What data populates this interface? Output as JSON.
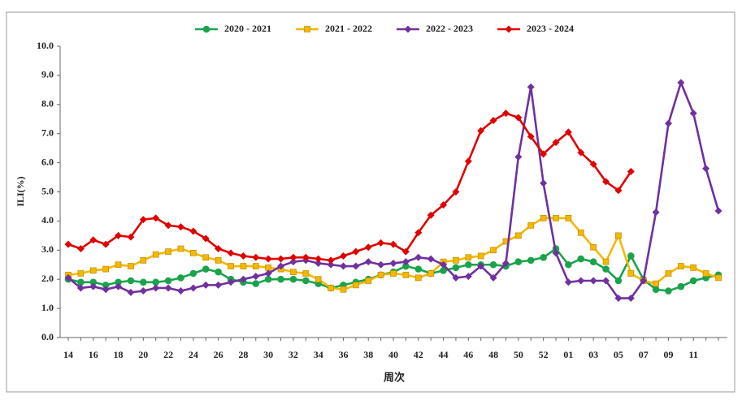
{
  "chart_data": {
    "type": "line",
    "ylabel": "ILI(%)",
    "xlabel": "周次",
    "categories": [
      "14",
      null,
      "16",
      null,
      "18",
      null,
      "20",
      null,
      "22",
      null,
      "24",
      null,
      "26",
      null,
      "28",
      null,
      "30",
      null,
      "32",
      null,
      "34",
      null,
      "36",
      null,
      "38",
      null,
      "40",
      null,
      "42",
      null,
      "44",
      null,
      "46",
      null,
      "48",
      null,
      "50",
      null,
      "52",
      null,
      "01",
      null,
      "03",
      null,
      "05",
      null,
      "07",
      null,
      "09",
      null,
      "11",
      null,
      null
    ],
    "ylim": [
      0,
      10
    ],
    "yticks": [
      {
        "value": 0,
        "label": "0.0"
      },
      {
        "value": 1,
        "label": "1.0"
      },
      {
        "value": 2,
        "label": "2.0"
      },
      {
        "value": 3,
        "label": "3.0"
      },
      {
        "value": 4,
        "label": "4.0"
      },
      {
        "value": 5,
        "label": "5.0"
      },
      {
        "value": 6,
        "label": "6.0"
      },
      {
        "value": 7,
        "label": "7.0"
      },
      {
        "value": 8,
        "label": "8.0"
      },
      {
        "value": 9,
        "label": "9.0"
      },
      {
        "value": 10,
        "label": "10.0"
      }
    ],
    "legend": "top",
    "series": [
      {
        "name": "2020 - 2021",
        "color": "#1aa34a",
        "marker": "circle",
        "values": [
          2.0,
          1.9,
          1.9,
          1.8,
          1.9,
          1.95,
          1.9,
          1.9,
          1.95,
          2.05,
          2.2,
          2.35,
          2.25,
          2.0,
          1.9,
          1.85,
          2.0,
          2.0,
          2.0,
          1.95,
          1.85,
          1.7,
          1.8,
          1.9,
          2.0,
          2.15,
          2.25,
          2.45,
          2.35,
          2.2,
          2.3,
          2.4,
          2.5,
          2.5,
          2.5,
          2.45,
          2.6,
          2.65,
          2.75,
          3.05,
          2.5,
          2.7,
          2.6,
          2.35,
          1.95,
          2.8,
          2.0,
          1.65,
          1.6,
          1.75,
          1.95,
          2.05,
          2.15
        ]
      },
      {
        "name": "2021 - 2022",
        "color": "#f5b800",
        "marker": "square",
        "values": [
          2.15,
          2.2,
          2.3,
          2.35,
          2.5,
          2.45,
          2.65,
          2.85,
          2.95,
          3.05,
          2.9,
          2.75,
          2.65,
          2.45,
          2.45,
          2.45,
          2.4,
          2.35,
          2.25,
          2.2,
          2.0,
          1.7,
          1.65,
          1.8,
          1.95,
          2.15,
          2.2,
          2.15,
          2.05,
          2.2,
          2.6,
          2.65,
          2.75,
          2.8,
          3.0,
          3.3,
          3.5,
          3.85,
          4.1,
          4.1,
          4.1,
          3.6,
          3.1,
          2.6,
          3.5,
          2.2,
          1.95,
          1.85,
          2.2,
          2.45,
          2.4,
          2.2,
          2.05
        ]
      },
      {
        "name": "2022 - 2023",
        "color": "#7030a0",
        "marker": "diamond",
        "values": [
          2.05,
          1.7,
          1.75,
          1.65,
          1.75,
          1.55,
          1.6,
          1.7,
          1.7,
          1.6,
          1.7,
          1.8,
          1.8,
          1.9,
          2.0,
          2.1,
          2.2,
          2.45,
          2.6,
          2.65,
          2.55,
          2.5,
          2.45,
          2.45,
          2.6,
          2.5,
          2.55,
          2.6,
          2.75,
          2.7,
          2.5,
          2.05,
          2.1,
          2.45,
          2.05,
          2.55,
          6.2,
          8.6,
          5.3,
          2.9,
          1.9,
          1.95,
          1.95,
          1.95,
          1.35,
          1.35,
          1.95,
          4.3,
          7.35,
          8.75,
          7.7,
          5.8,
          4.35
        ]
      },
      {
        "name": "2023 - 2024",
        "color": "#e00000",
        "marker": "diamond",
        "values": [
          3.2,
          3.05,
          3.35,
          3.2,
          3.5,
          3.45,
          4.05,
          4.1,
          3.85,
          3.8,
          3.65,
          3.4,
          3.05,
          2.9,
          2.8,
          2.75,
          2.7,
          2.7,
          2.75,
          2.75,
          2.7,
          2.65,
          2.8,
          2.95,
          3.1,
          3.25,
          3.2,
          2.95,
          3.6,
          4.2,
          4.55,
          5.0,
          6.05,
          7.1,
          7.45,
          7.7,
          7.55,
          6.9,
          6.3,
          6.7,
          7.05,
          6.35,
          5.95,
          5.35,
          5.05,
          5.7,
          null,
          null,
          null,
          null,
          null,
          null,
          null
        ]
      }
    ]
  }
}
